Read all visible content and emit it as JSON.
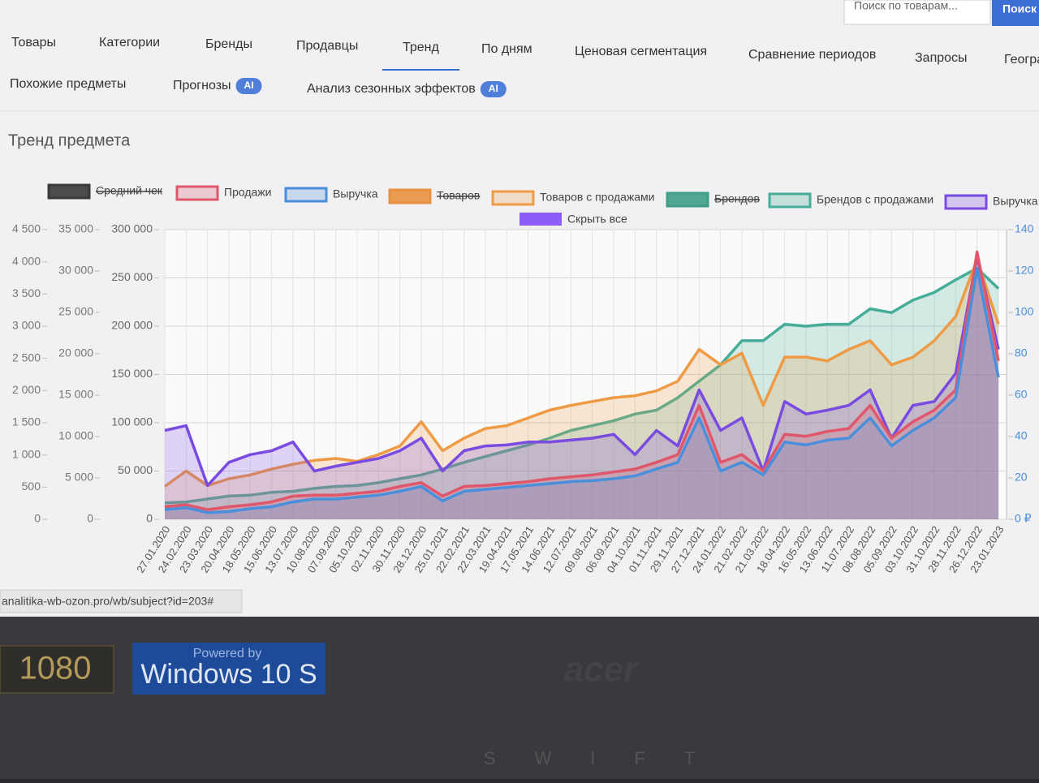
{
  "search": {
    "placeholder": "Поиск по товарам...",
    "button": "Поиск"
  },
  "nav": {
    "row1": [
      "Товары",
      "Категории",
      "Бренды",
      "Продавцы",
      "Тренд",
      "По дням",
      "Ценовая сегментация",
      "Сравнение периодов",
      "Запросы",
      "Геогра"
    ],
    "active_tab": 4,
    "row2": [
      {
        "label": "Похожие предметы"
      },
      {
        "label": "Прогнозы",
        "badge": "AI"
      },
      {
        "label": "Анализ сезонных эффектов",
        "badge": "AI"
      }
    ]
  },
  "section_title": "Тренд предмета",
  "chart_data": {
    "type": "line",
    "categories": [
      "27.01.2020",
      "24.02.2020",
      "23.03.2020",
      "20.04.2020",
      "18.05.2020",
      "15.06.2020",
      "13.07.2020",
      "10.08.2020",
      "07.09.2020",
      "05.10.2020",
      "02.11.2020",
      "30.11.2020",
      "28.12.2020",
      "25.01.2021",
      "22.02.2021",
      "22.03.2021",
      "19.04.2021",
      "17.05.2021",
      "14.06.2021",
      "12.07.2021",
      "09.08.2021",
      "06.09.2021",
      "04.10.2021",
      "01.11.2021",
      "29.11.2021",
      "27.12.2021",
      "24.01.2022",
      "21.02.2022",
      "21.03.2022",
      "18.04.2022",
      "16.05.2022",
      "13.06.2022",
      "11.07.2022",
      "08.08.2022",
      "05.09.2022",
      "03.10.2022",
      "31.10.2022",
      "28.11.2022",
      "26.12.2022",
      "23.01.2023"
    ],
    "ylim": [
      0,
      300000
    ],
    "yticks": [
      0,
      {
        "value": 50000,
        "label": "50 000"
      },
      {
        "value": 100000,
        "label": "100 000"
      },
      {
        "value": 150000,
        "label": "150 000"
      },
      {
        "value": 200000,
        "label": "200 000"
      },
      {
        "value": 250000,
        "label": "250 000"
      },
      {
        "value": 300000,
        "label": "300 000"
      }
    ],
    "extra_axes": [
      {
        "ylim": [
          0,
          4500
        ],
        "yticks": [
          0,
          500,
          {
            "value": 1000,
            "label": "1 000"
          },
          {
            "value": 1500,
            "label": "1 500"
          },
          {
            "value": 2000,
            "label": "2 000"
          },
          {
            "value": 2500,
            "label": "2 500"
          },
          {
            "value": 3000,
            "label": "3 000"
          },
          {
            "value": 3500,
            "label": "3 500"
          },
          {
            "value": 4000,
            "label": "4 000"
          },
          {
            "value": 4500,
            "label": "4 500"
          }
        ]
      },
      {
        "ylim": [
          0,
          35000
        ],
        "yticks": [
          0,
          {
            "value": 5000,
            "label": "5 000"
          },
          {
            "value": 10000,
            "label": "10 000"
          },
          {
            "value": 15000,
            "label": "15 000"
          },
          {
            "value": 20000,
            "label": "20 000"
          },
          {
            "value": 25000,
            "label": "25 000"
          },
          {
            "value": 30000,
            "label": "30 000"
          },
          {
            "value": 35000,
            "label": "35 000"
          }
        ]
      }
    ],
    "y2lim": [
      0,
      140
    ],
    "y2ticks": [
      {
        "value": 0,
        "label": "0 ₽"
      },
      20,
      40,
      60,
      80,
      100,
      120,
      140
    ],
    "grid": true,
    "series": [
      {
        "name": "Средний чек",
        "color": "#3a3a3a",
        "hidden": true
      },
      {
        "name": "Продажи",
        "color": "#e0566b",
        "values": [
          13000,
          15000,
          10000,
          13000,
          15000,
          18000,
          24000,
          25000,
          25000,
          27000,
          29000,
          34000,
          38000,
          24000,
          34000,
          35000,
          37000,
          39000,
          42000,
          44000,
          46000,
          49000,
          52000,
          59000,
          67000,
          118000,
          59000,
          67000,
          50000,
          88000,
          86000,
          91000,
          94000,
          118000,
          84000,
          101000,
          113000,
          134000,
          277000,
          164000
        ]
      },
      {
        "name": "Выручка",
        "color": "#4a8fdc",
        "values": [
          10000,
          12000,
          7000,
          8000,
          11000,
          13000,
          18000,
          21000,
          21000,
          23000,
          25000,
          29000,
          34000,
          19000,
          29000,
          31000,
          33000,
          35000,
          37000,
          39000,
          40000,
          42000,
          45000,
          52000,
          59000,
          105000,
          50000,
          59000,
          46000,
          80000,
          77000,
          82000,
          84000,
          105000,
          76000,
          92000,
          105000,
          126000,
          260000,
          147000
        ]
      },
      {
        "name": "Товаров",
        "color": "#e8913f",
        "hidden": true
      },
      {
        "name": "Товаров с продажами",
        "color": "#ef9a45",
        "values": [
          34000,
          50000,
          35000,
          42000,
          46000,
          52000,
          57000,
          61000,
          63000,
          60000,
          67000,
          76000,
          101000,
          71000,
          84000,
          94000,
          97000,
          105000,
          113000,
          118000,
          122000,
          126000,
          128000,
          133000,
          143000,
          176000,
          160000,
          172000,
          118000,
          168000,
          168000,
          164000,
          176000,
          185000,
          160000,
          168000,
          185000,
          210000,
          269000,
          202000
        ]
      },
      {
        "name": "Брендов",
        "color": "#3f9f86",
        "hidden": true
      },
      {
        "name": "Брендов с продажами",
        "color": "#45ad98",
        "values": [
          17000,
          18000,
          21000,
          24000,
          25000,
          28000,
          29000,
          32000,
          34000,
          35000,
          38000,
          42000,
          46000,
          52000,
          59000,
          65000,
          71000,
          77000,
          84000,
          92000,
          97000,
          102000,
          109000,
          113000,
          126000,
          143000,
          160000,
          185000,
          185000,
          202000,
          200000,
          202000,
          202000,
          218000,
          214000,
          227000,
          235000,
          248000,
          260000,
          239000
        ]
      },
      {
        "name": "Выручка",
        "color": "#7a4be0",
        "values": [
          92000,
          97000,
          35000,
          59000,
          67000,
          71000,
          80000,
          50000,
          55000,
          59000,
          63000,
          71000,
          84000,
          50000,
          71000,
          76000,
          77000,
          80000,
          80000,
          82000,
          84000,
          88000,
          67000,
          92000,
          76000,
          134000,
          92000,
          105000,
          50000,
          122000,
          109000,
          113000,
          118000,
          134000,
          84000,
          118000,
          122000,
          151000,
          273000,
          176000
        ]
      }
    ],
    "hide_all": {
      "label": "Скрыть все",
      "color": "#8b5cf6"
    }
  },
  "status_url": "analitika-wb-ozon.pro/wb/subject?id=203#",
  "bezel": {
    "resolution": "1080",
    "powered": "Powered by",
    "os": "Windows 10 S",
    "brand": "acer",
    "keys": "SWIFT"
  }
}
